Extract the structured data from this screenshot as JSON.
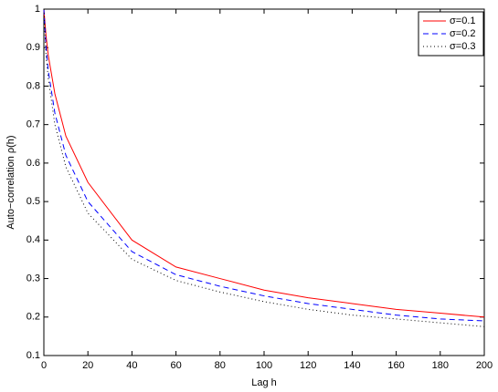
{
  "chart_data": {
    "type": "line",
    "x_label": "Lag h",
    "y_label": "Auto−correlation ρ(h)",
    "x": [
      0,
      1,
      2,
      5,
      10,
      20,
      40,
      60,
      80,
      100,
      120,
      140,
      160,
      180,
      200
    ],
    "series": [
      {
        "name": "σ=0.1",
        "color": "#ff0000",
        "line_style": "solid",
        "values": [
          1,
          0.93,
          0.88,
          0.78,
          0.67,
          0.55,
          0.4,
          0.33,
          0.3,
          0.27,
          0.25,
          0.235,
          0.22,
          0.21,
          0.2
        ]
      },
      {
        "name": "σ=0.2",
        "color": "#0000ff",
        "line_style": "dashed",
        "values": [
          1,
          0.9,
          0.84,
          0.73,
          0.62,
          0.5,
          0.37,
          0.31,
          0.28,
          0.255,
          0.235,
          0.22,
          0.205,
          0.195,
          0.19
        ]
      },
      {
        "name": "σ=0.3",
        "color": "#000000",
        "line_style": "dotted",
        "values": [
          1,
          0.88,
          0.82,
          0.7,
          0.59,
          0.47,
          0.35,
          0.295,
          0.265,
          0.24,
          0.22,
          0.205,
          0.195,
          0.185,
          0.175
        ]
      }
    ],
    "xlim": [
      0,
      200
    ],
    "xticks": [
      0,
      20,
      40,
      60,
      80,
      100,
      120,
      140,
      160,
      180,
      200
    ],
    "ylim": [
      0.1,
      1
    ],
    "yticks": [
      0.1,
      0.2,
      0.3,
      0.4,
      0.5,
      0.6,
      0.7,
      0.8,
      0.9,
      1
    ],
    "grid": false,
    "legend": "top-right"
  }
}
